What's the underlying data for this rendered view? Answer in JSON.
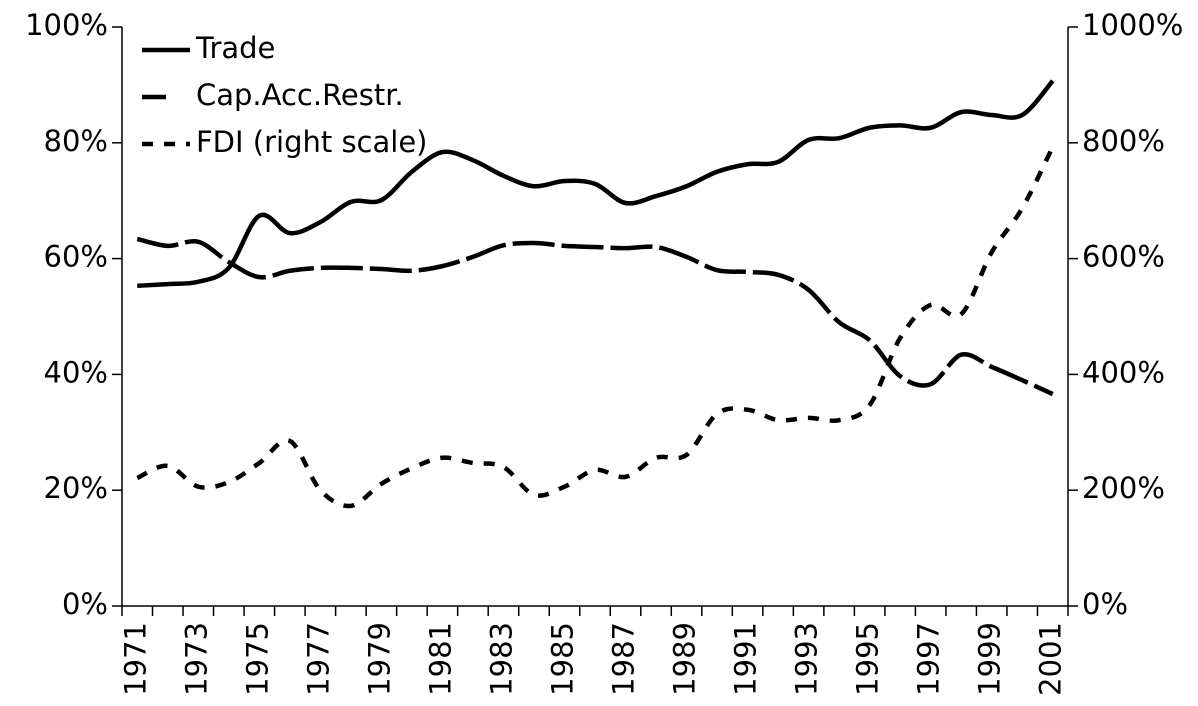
{
  "chart_data": {
    "type": "line",
    "categories": [
      "1971",
      null,
      "1973",
      null,
      "1975",
      null,
      "1977",
      null,
      "1979",
      null,
      "1981",
      null,
      "1983",
      null,
      "1985",
      null,
      "1987",
      null,
      "1989",
      null,
      "1991",
      null,
      "1993",
      null,
      "1995",
      null,
      "1997",
      null,
      "1999",
      null,
      "2001"
    ],
    "series": [
      {
        "name": "Trade",
        "color": "#000000",
        "dash": "solid",
        "values": [
          55.3,
          55.6,
          56,
          58.4,
          67.4,
          64.4,
          66.3,
          69.8,
          70.1,
          75,
          78.4,
          77,
          74.3,
          72.5,
          73.4,
          72.9,
          69.6,
          70.8,
          72.5,
          75,
          76.3,
          76.7,
          80.5,
          80.8,
          82.6,
          83,
          82.6,
          85.3,
          84.8,
          84.8,
          90.7
        ]
      },
      {
        "name": "Cap.Acc.Restr.",
        "color": "#000000",
        "dash": "long",
        "values": [
          63.4,
          62.2,
          62.9,
          59.4,
          56.8,
          57.9,
          58.4,
          58.4,
          58.2,
          57.9,
          58.7,
          60.3,
          62.3,
          62.7,
          62.2,
          62,
          61.8,
          62,
          60.3,
          58,
          57.7,
          57.2,
          54.6,
          49,
          45.9,
          39.7,
          38.3,
          43.4,
          41.3,
          39,
          36.6
        ]
      },
      {
        "name": "FDI (right scale)",
        "color": "#000000",
        "dash": "short",
        "axis": "y2",
        "values": [
          221,
          242,
          206,
          214,
          247,
          285,
          200,
          173,
          211,
          238,
          256,
          247,
          240,
          192,
          206,
          235,
          223,
          256,
          261,
          332,
          339,
          321,
          325,
          321,
          347,
          463,
          520,
          504,
          611,
          687,
          793
        ]
      }
    ],
    "ylim": [
      0,
      100
    ],
    "yticks": [
      {
        "value": 0,
        "label": "0%"
      },
      {
        "value": 20,
        "label": "20%"
      },
      {
        "value": 40,
        "label": "40%"
      },
      {
        "value": 60,
        "label": "60%"
      },
      {
        "value": 80,
        "label": "80%"
      },
      {
        "value": 100,
        "label": "100%"
      }
    ],
    "y2lim": [
      0,
      1000
    ],
    "y2ticks": [
      {
        "value": 0,
        "label": "0%"
      },
      {
        "value": 200,
        "label": "200%"
      },
      {
        "value": 400,
        "label": "400%"
      },
      {
        "value": 600,
        "label": "600%"
      },
      {
        "value": 800,
        "label": "800%"
      },
      {
        "value": 1000,
        "label": "1000%"
      }
    ],
    "legend": "top-left",
    "grid": false
  }
}
